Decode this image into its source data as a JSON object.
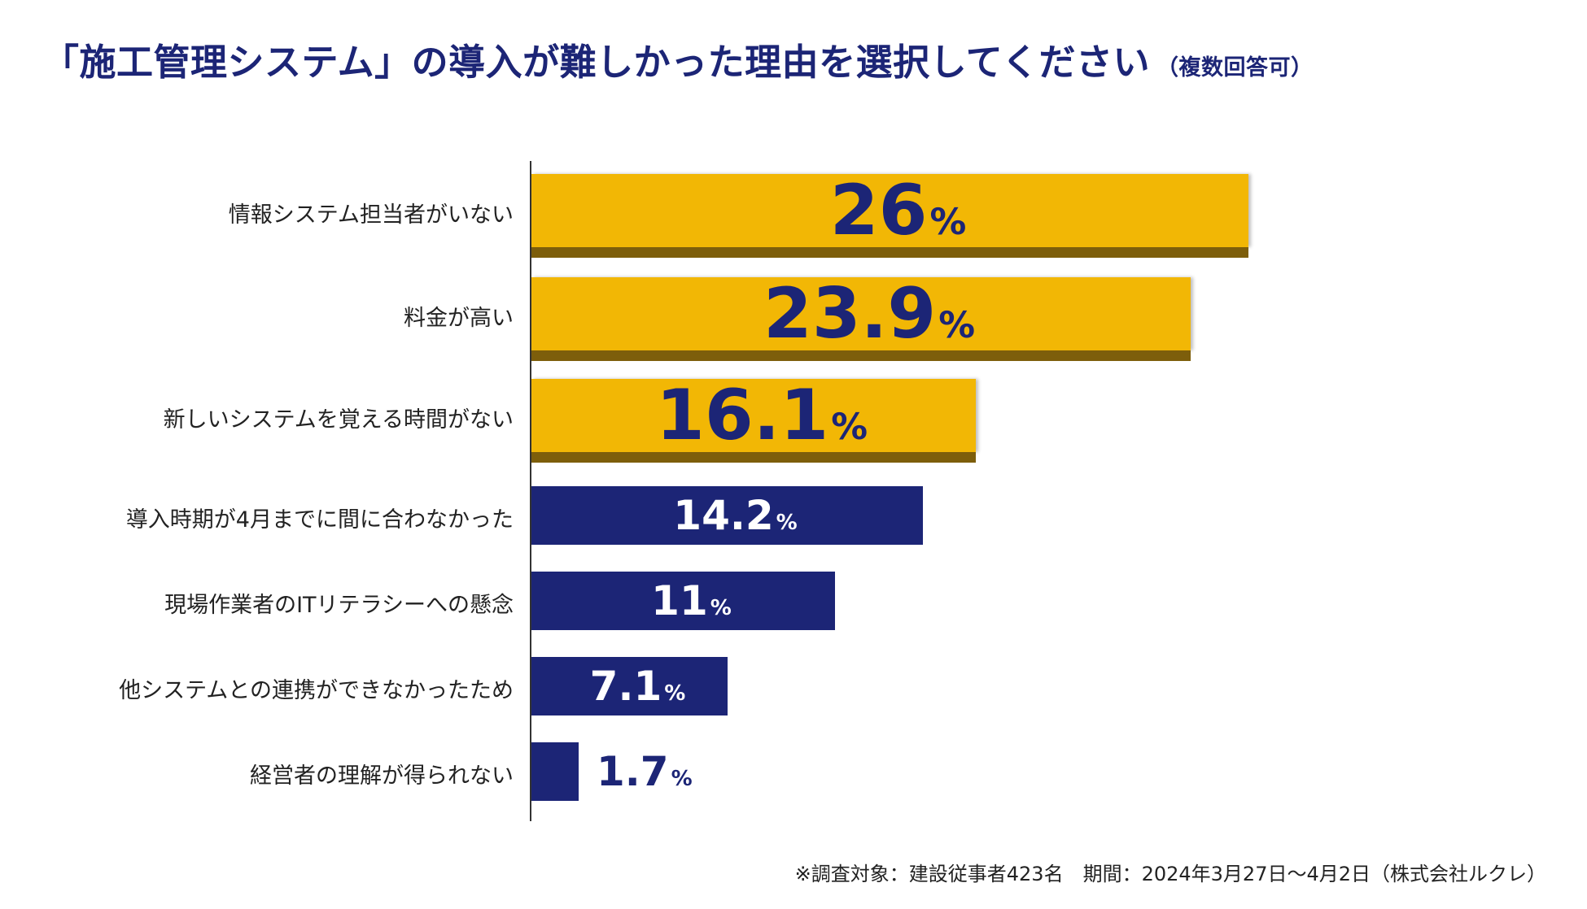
{
  "chart_data": {
    "type": "bar",
    "orientation": "horizontal",
    "title": "「施工管理システム」の導入が難しかった理由を選択してください",
    "subtitle": "（複数回答可）",
    "unit": "%",
    "categories": [
      "情報システム担当者がいない",
      "料金が高い",
      "新しいシステムを覚える時間がない",
      "導入時期が4月までに間に合わなかった",
      "現場作業者のITリテラシーへの懸念",
      "他システムとの連携ができなかったため",
      "経営者の理解が得られない"
    ],
    "values": [
      26,
      23.9,
      16.1,
      14.2,
      11,
      7.1,
      1.7
    ],
    "value_labels": [
      "26",
      "23.9",
      "16.1",
      "14.2",
      "11",
      "7.1",
      "1.7"
    ],
    "highlight_count": 3,
    "colors": {
      "highlight": "#f2b705",
      "highlight_shadow": "#7d5e0b",
      "normal": "#1c2576",
      "title": "#1c2576"
    },
    "xlim": [
      0,
      28
    ],
    "footnote": "※調査対象：建設従事者423名　期間：2024年3月27日〜4月2日（株式会社ルクレ）"
  }
}
